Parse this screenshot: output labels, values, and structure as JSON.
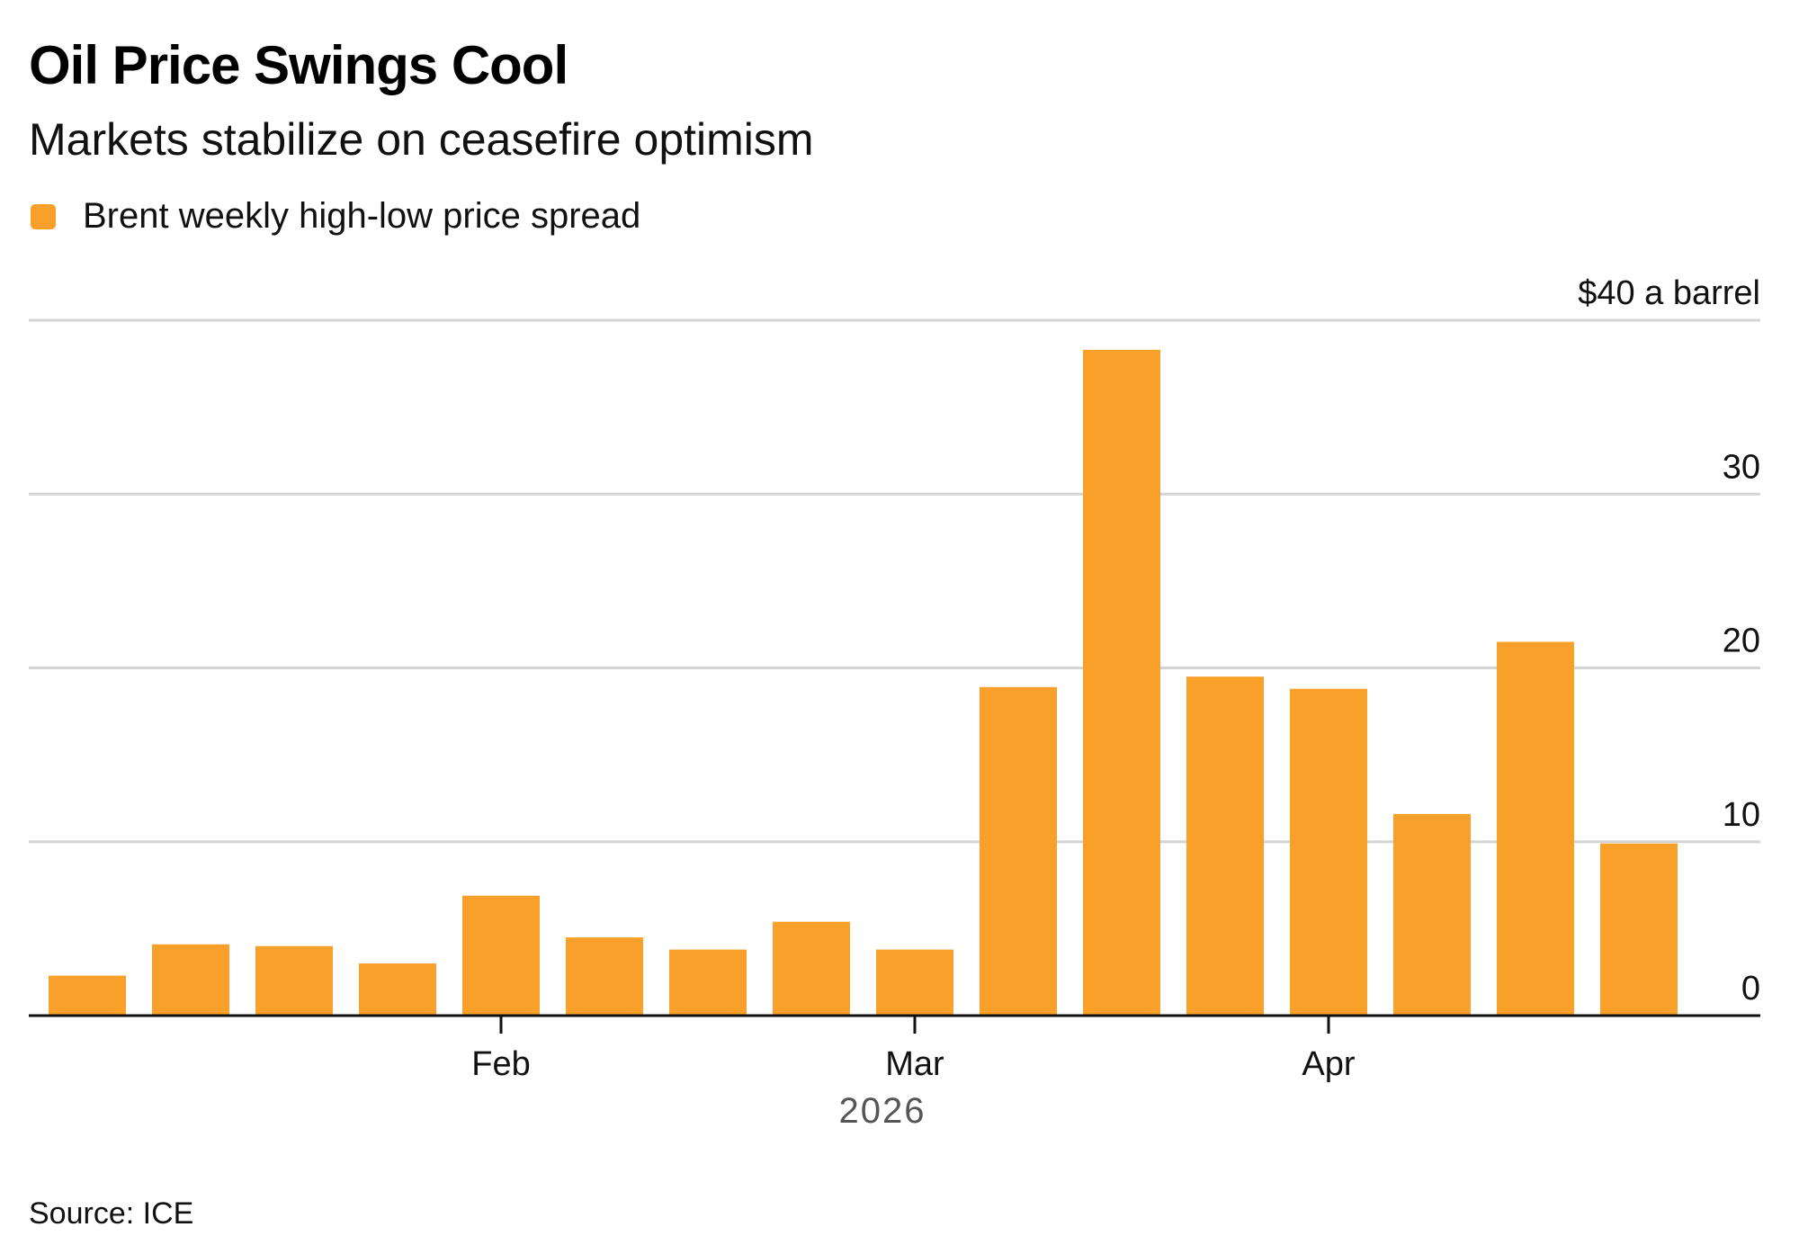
{
  "title": "Oil Price Swings Cool",
  "subtitle": "Markets stabilize on ceasefire optimism",
  "legend": {
    "label": "Brent weekly high-low price spread",
    "color": "#F9A02A"
  },
  "source": "Source: ICE",
  "chart_data": {
    "type": "bar",
    "title": "Oil Price Swings Cool",
    "subtitle": "Markets stabilize on ceasefire optimism",
    "xlabel": "2026",
    "ylabel": "$ a barrel",
    "unit_label": "$40 a barrel",
    "ylim": [
      0,
      40
    ],
    "yticks": [
      0,
      10,
      20,
      30,
      40
    ],
    "ytick_labels": [
      "0",
      "10",
      "20",
      "30",
      "$40 a barrel"
    ],
    "grid": true,
    "legend_position": "top-left",
    "year_label": "2026",
    "x_month_ticks": [
      {
        "label": "Feb",
        "bar_index": 4
      },
      {
        "label": "Mar",
        "bar_index": 8
      },
      {
        "label": "Apr",
        "bar_index": 12
      }
    ],
    "series": [
      {
        "name": "Brent weekly high-low price spread",
        "color": "#F9A02A",
        "values": [
          2.3,
          4.1,
          4.0,
          3.0,
          6.9,
          4.5,
          3.8,
          5.4,
          3.8,
          18.9,
          38.3,
          19.5,
          18.8,
          11.6,
          21.5,
          9.9
        ]
      }
    ]
  }
}
